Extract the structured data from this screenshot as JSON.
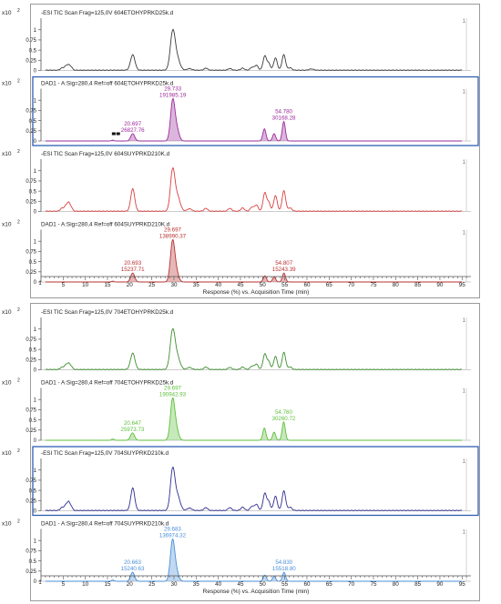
{
  "chart_data": {
    "type": "line",
    "x_axis": {
      "label": "Response (%) vs. Acquisition Time (min)",
      "range": [
        0,
        97
      ],
      "ticks": [
        5,
        10,
        15,
        20,
        25,
        30,
        35,
        40,
        45,
        50,
        55,
        60,
        65,
        70,
        75,
        80,
        85,
        90,
        95
      ],
      "minor_tick_labels": [
        "1",
        "1"
      ]
    },
    "y_axis": {
      "multiplier_label": "x10 2",
      "ticks": [
        "0",
        "0.25",
        "0.5",
        "0.75",
        "1"
      ],
      "range": [
        0,
        1.15
      ]
    },
    "groups": [
      {
        "panels": [
          {
            "title": "-ESI TIC Scan Frag=125,0V 604ETOHYPRKD25k.d",
            "color": "#3a3a3a",
            "fill": false,
            "selected": false,
            "y_top_label": "1",
            "peaks": [
              [
                4.8,
                0.06,
                0.4
              ],
              [
                5.6,
                0.09,
                0.3
              ],
              [
                6.2,
                0.12,
                0.3
              ],
              [
                6.8,
                0.08,
                0.3
              ],
              [
                20.7,
                0.38,
                0.5
              ],
              [
                29.73,
                0.95,
                0.55
              ],
              [
                30.8,
                0.25,
                0.6
              ],
              [
                33.5,
                0.04,
                0.5
              ],
              [
                37.2,
                0.05,
                0.4
              ],
              [
                42.6,
                0.04,
                0.4
              ],
              [
                45.5,
                0.05,
                0.4
              ],
              [
                47.6,
                0.07,
                0.4
              ],
              [
                48.6,
                0.12,
                0.4
              ],
              [
                50.5,
                0.35,
                0.4
              ],
              [
                51.4,
                0.16,
                0.35
              ],
              [
                52.9,
                0.3,
                0.4
              ],
              [
                54.78,
                0.38,
                0.4
              ],
              [
                56.2,
                0.06,
                0.4
              ],
              [
                61,
                0.03,
                0.5
              ]
            ],
            "labels": []
          },
          {
            "title": "DAD1 - A:Sig=280,4  Ref=off 604ETOHYPRKD25k.d",
            "color": "#9b2b9b",
            "fill": true,
            "selected": true,
            "y_top_label": "1",
            "peaks": [
              [
                16.2,
                0.02,
                0.3
              ],
              [
                20.697,
                0.18,
                0.45
              ],
              [
                29.733,
                1.0,
                0.5
              ],
              [
                30.7,
                0.25,
                0.5
              ],
              [
                50.4,
                0.3,
                0.35
              ],
              [
                52.6,
                0.18,
                0.35
              ],
              [
                54.78,
                0.48,
                0.35
              ]
            ],
            "labels": [
              {
                "time": "20.697",
                "area": "26827.76",
                "x": 20.697
              },
              {
                "time": "29.733",
                "area": "191985.19",
                "x": 29.733
              },
              {
                "time": "54.780",
                "area": "30168.28",
                "x": 54.78
              }
            ]
          },
          {
            "title": "-ESI TIC Scan Frag=125,0V 604SUYPRKD210K.d",
            "color": "#d94040",
            "fill": false,
            "selected": false,
            "y_top_label": "1",
            "peaks": [
              [
                4.8,
                0.08,
                0.4
              ],
              [
                5.6,
                0.12,
                0.3
              ],
              [
                6.2,
                0.2,
                0.3
              ],
              [
                6.8,
                0.1,
                0.3
              ],
              [
                20.7,
                0.55,
                0.45
              ],
              [
                29.7,
                1.0,
                0.5
              ],
              [
                30.8,
                0.35,
                0.6
              ],
              [
                33.5,
                0.06,
                0.5
              ],
              [
                37.2,
                0.07,
                0.4
              ],
              [
                42.6,
                0.07,
                0.4
              ],
              [
                45.5,
                0.08,
                0.4
              ],
              [
                47.6,
                0.1,
                0.4
              ],
              [
                48.6,
                0.15,
                0.4
              ],
              [
                50.5,
                0.45,
                0.4
              ],
              [
                51.4,
                0.2,
                0.35
              ],
              [
                52.9,
                0.38,
                0.4
              ],
              [
                54.8,
                0.5,
                0.4
              ],
              [
                56.2,
                0.08,
                0.4
              ]
            ],
            "labels": []
          },
          {
            "title": "DAD1 - A:Sig=280,4  Ref=off 604SUYPRKD210K.d",
            "color": "#b83232",
            "fill": true,
            "selected": false,
            "y_top_label": "1",
            "peaks": [
              [
                16.2,
                0.02,
                0.3
              ],
              [
                20.693,
                0.22,
                0.45
              ],
              [
                29.697,
                1.0,
                0.5
              ],
              [
                30.6,
                0.2,
                0.5
              ],
              [
                50.5,
                0.15,
                0.35
              ],
              [
                52.6,
                0.12,
                0.35
              ],
              [
                54.807,
                0.22,
                0.35
              ]
            ],
            "labels": [
              {
                "time": "20.693",
                "area": "15237.71",
                "x": 20.693
              },
              {
                "time": "29.697",
                "area": "138990.37",
                "x": 29.697
              },
              {
                "time": "54.807",
                "area": "15243.39",
                "x": 54.807
              }
            ]
          }
        ]
      },
      {
        "panels": [
          {
            "title": "-ESI TIC Scan Frag=125,0V 704ETOHYPRKD25k.d",
            "color": "#3e8e2e",
            "fill": false,
            "selected": false,
            "y_top_label": "1",
            "peaks": [
              [
                4.8,
                0.06,
                0.4
              ],
              [
                5.6,
                0.1,
                0.3
              ],
              [
                6.2,
                0.14,
                0.3
              ],
              [
                6.8,
                0.08,
                0.3
              ],
              [
                20.7,
                0.4,
                0.5
              ],
              [
                29.7,
                0.95,
                0.55
              ],
              [
                30.8,
                0.28,
                0.6
              ],
              [
                33.5,
                0.05,
                0.5
              ],
              [
                37.2,
                0.06,
                0.4
              ],
              [
                42.6,
                0.05,
                0.4
              ],
              [
                45.5,
                0.06,
                0.4
              ],
              [
                47.6,
                0.08,
                0.4
              ],
              [
                48.6,
                0.13,
                0.4
              ],
              [
                50.5,
                0.38,
                0.4
              ],
              [
                51.4,
                0.18,
                0.35
              ],
              [
                52.9,
                0.32,
                0.4
              ],
              [
                54.8,
                0.42,
                0.4
              ],
              [
                56.2,
                0.06,
                0.4
              ]
            ],
            "labels": []
          },
          {
            "title": "DAD1 - A:Sig=280,4  Ref=off 704ETOHYPRKD25k.d",
            "color": "#5cbf3a",
            "fill": true,
            "selected": false,
            "y_top_label": "1",
            "peaks": [
              [
                16.2,
                0.03,
                0.3
              ],
              [
                20.647,
                0.18,
                0.45
              ],
              [
                29.697,
                1.0,
                0.5
              ],
              [
                30.6,
                0.22,
                0.5
              ],
              [
                50.4,
                0.3,
                0.35
              ],
              [
                52.6,
                0.2,
                0.35
              ],
              [
                54.76,
                0.45,
                0.35
              ]
            ],
            "labels": [
              {
                "time": "20.647",
                "area": "25973.73",
                "x": 20.647
              },
              {
                "time": "29.697",
                "area": "190942.93",
                "x": 29.697
              },
              {
                "time": "54.760",
                "area": "30260.72",
                "x": 54.76
              }
            ]
          },
          {
            "title": "-ESI TIC Scan Frag=125,0V 704SUYPRKD210k.d",
            "color": "#2e2e8e",
            "fill": false,
            "selected": true,
            "y_top_label": "1",
            "peaks": [
              [
                4.8,
                0.08,
                0.4
              ],
              [
                5.6,
                0.12,
                0.3
              ],
              [
                6.2,
                0.2,
                0.3
              ],
              [
                6.8,
                0.1,
                0.3
              ],
              [
                20.7,
                0.55,
                0.45
              ],
              [
                29.7,
                1.0,
                0.5
              ],
              [
                30.8,
                0.35,
                0.6
              ],
              [
                33.5,
                0.06,
                0.5
              ],
              [
                37.2,
                0.07,
                0.4
              ],
              [
                42.6,
                0.07,
                0.4
              ],
              [
                45.5,
                0.08,
                0.4
              ],
              [
                47.6,
                0.1,
                0.4
              ],
              [
                48.6,
                0.15,
                0.4
              ],
              [
                50.5,
                0.42,
                0.4
              ],
              [
                51.4,
                0.2,
                0.35
              ],
              [
                52.9,
                0.35,
                0.4
              ],
              [
                54.8,
                0.48,
                0.4
              ],
              [
                56.2,
                0.08,
                0.4
              ]
            ],
            "labels": []
          },
          {
            "title": "DAD1 - A:Sig=280,4  Ref=off 704SUYPRKD210k.d",
            "color": "#4a8fd8",
            "fill": true,
            "selected": false,
            "y_top_label": "1",
            "peaks": [
              [
                16.2,
                0.03,
                0.3
              ],
              [
                20.663,
                0.22,
                0.45
              ],
              [
                29.683,
                1.0,
                0.5
              ],
              [
                30.6,
                0.2,
                0.5
              ],
              [
                50.5,
                0.15,
                0.35
              ],
              [
                52.6,
                0.12,
                0.35
              ],
              [
                54.83,
                0.22,
                0.35
              ]
            ],
            "labels": [
              {
                "time": "20.663",
                "area": "15240.63",
                "x": 20.663
              },
              {
                "time": "29.683",
                "area": "136974.32",
                "x": 29.683
              },
              {
                "time": "54.830",
                "area": "15518.80",
                "x": 54.83
              }
            ]
          }
        ]
      }
    ]
  }
}
